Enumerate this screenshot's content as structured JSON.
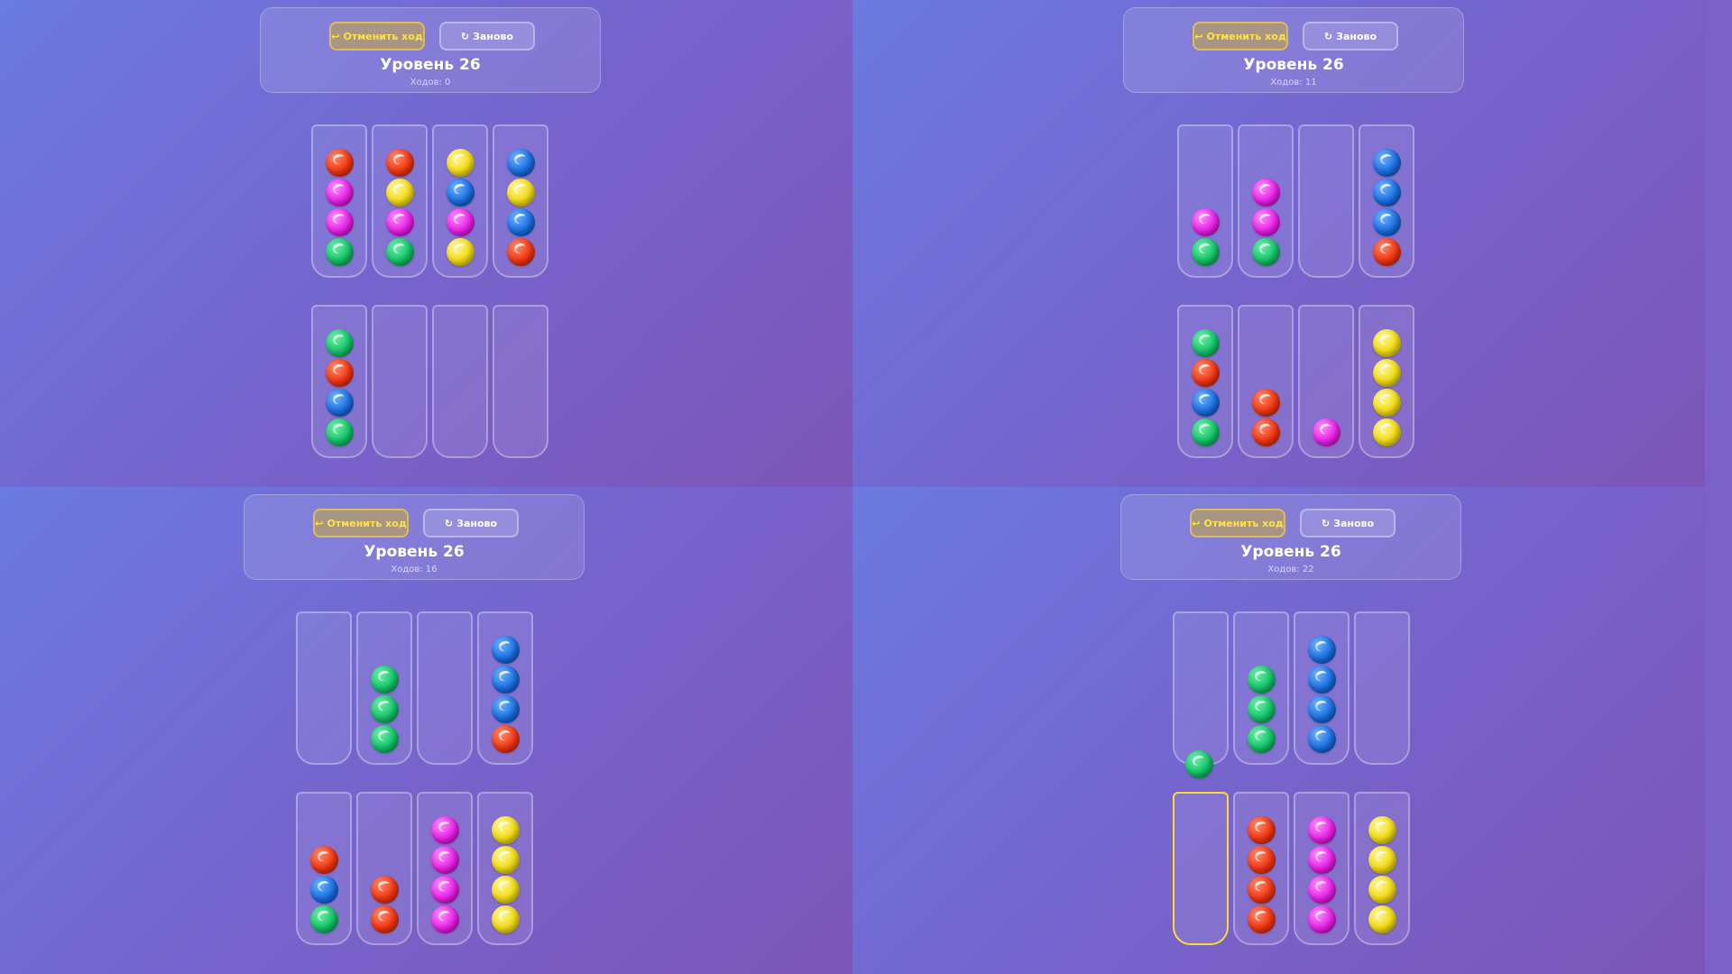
{
  "labels": {
    "undo": "Отменить ход",
    "restart": "Заново",
    "level": "Уровень 26"
  },
  "colors": {
    "red": "#f03510",
    "magenta": "#e820e6",
    "green": "#14c268",
    "yellow": "#f2dc10",
    "blue": "#1a6ee0",
    "selected_outline": "#ffd83a"
  },
  "panels": [
    {
      "moves_text": "Ходов: 0",
      "tubes": [
        [
          "green",
          "magenta",
          "magenta",
          "red"
        ],
        [
          "green",
          "magenta",
          "yellow",
          "red"
        ],
        [
          "yellow",
          "magenta",
          "blue",
          "yellow"
        ],
        [
          "red",
          "blue",
          "yellow",
          "blue"
        ],
        [
          "green",
          "blue",
          "red",
          "green"
        ],
        [],
        [],
        []
      ],
      "lifted": null,
      "selected_tube": null
    },
    {
      "moves_text": "Ходов: 11",
      "tubes": [
        [
          "green",
          "magenta"
        ],
        [
          "green",
          "magenta",
          "magenta"
        ],
        [],
        [
          "red",
          "blue",
          "blue",
          "blue"
        ],
        [
          "green",
          "blue",
          "red",
          "green"
        ],
        [
          "red",
          "red"
        ],
        [
          "magenta"
        ],
        [
          "yellow",
          "yellow",
          "yellow",
          "yellow"
        ]
      ],
      "lifted": null,
      "selected_tube": null
    },
    {
      "moves_text": "Ходов: 16",
      "tubes": [
        [],
        [
          "green",
          "green",
          "green"
        ],
        [],
        [
          "red",
          "blue",
          "blue",
          "blue"
        ],
        [
          "green",
          "blue",
          "red"
        ],
        [
          "red",
          "red"
        ],
        [
          "magenta",
          "magenta",
          "magenta",
          "magenta"
        ],
        [
          "yellow",
          "yellow",
          "yellow",
          "yellow"
        ]
      ],
      "lifted": null,
      "selected_tube": null
    },
    {
      "moves_text": "Ходов: 22",
      "tubes": [
        [],
        [
          "green",
          "green",
          "green"
        ],
        [
          "blue",
          "blue",
          "blue",
          "blue"
        ],
        [],
        [],
        [
          "red",
          "red",
          "red",
          "red"
        ],
        [
          "magenta",
          "magenta",
          "magenta",
          "magenta"
        ],
        [
          "yellow",
          "yellow",
          "yellow",
          "yellow"
        ]
      ],
      "lifted": {
        "tube": 0,
        "color": "green"
      },
      "selected_tube": 4
    }
  ]
}
